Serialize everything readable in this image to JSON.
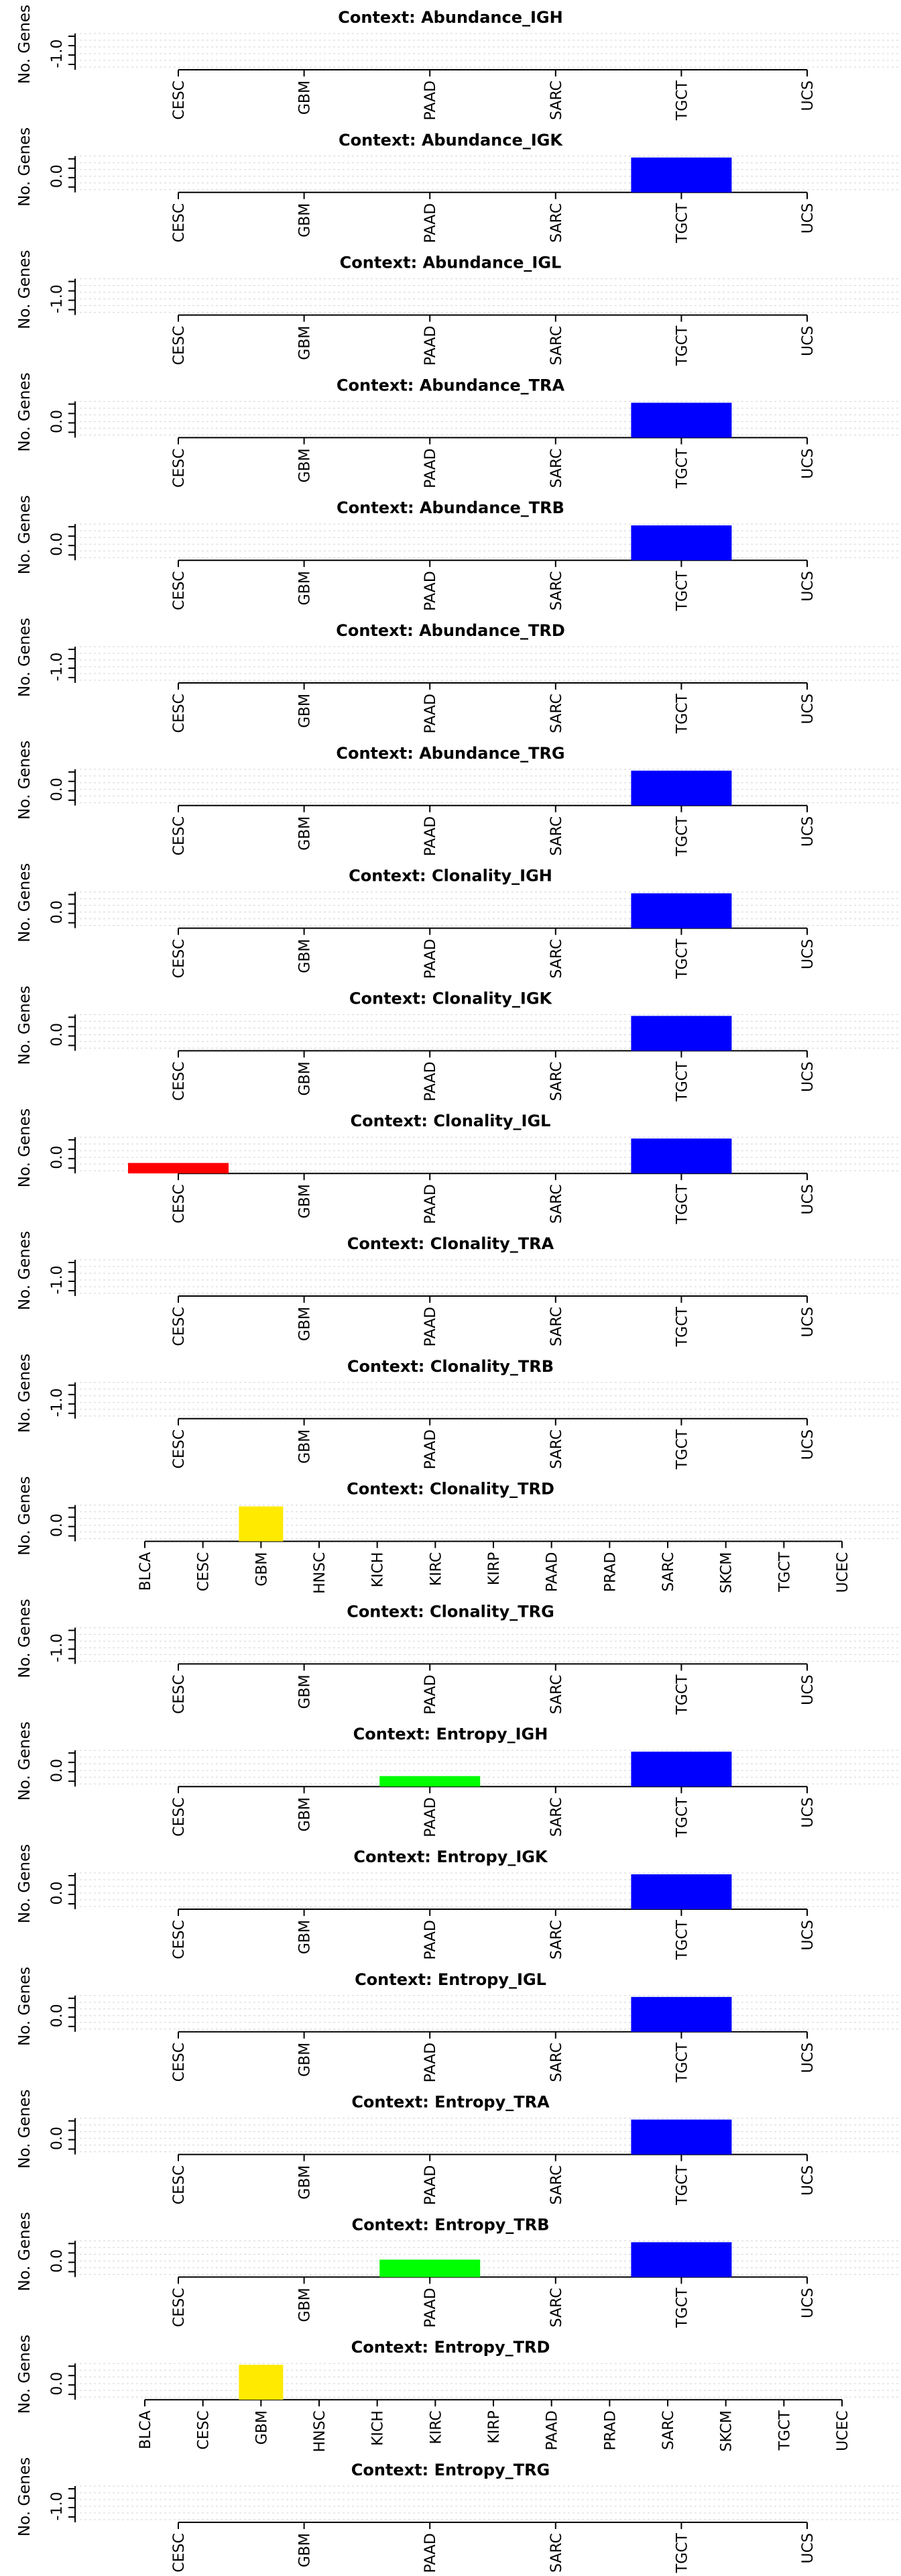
{
  "colors": {
    "TGCT": "#0000ff",
    "CESC": "#ff0000",
    "PAAD": "#00ff00",
    "GBM": "#ffea00"
  },
  "chart_data": [
    {
      "type": "bar",
      "title": "Context: Abundance_IGH",
      "ylabel": "No. Genes",
      "categories": [
        "CESC",
        "GBM",
        "PAAD",
        "SARC",
        "TGCT",
        "UCS"
      ],
      "values": [
        0,
        0,
        0,
        0,
        0,
        0
      ],
      "ytick": "-1.0",
      "bar_color_keys": [],
      "grid": true
    },
    {
      "type": "bar",
      "title": "Context: Abundance_IGK",
      "ylabel": "No. Genes",
      "categories": [
        "CESC",
        "GBM",
        "PAAD",
        "SARC",
        "TGCT",
        "UCS"
      ],
      "values": [
        0,
        0,
        0,
        0,
        1,
        0
      ],
      "ytick": "0.0",
      "bar_color_keys": [
        "",
        "",
        "",
        "",
        "TGCT",
        ""
      ],
      "grid": true
    },
    {
      "type": "bar",
      "title": "Context: Abundance_IGL",
      "ylabel": "No. Genes",
      "categories": [
        "CESC",
        "GBM",
        "PAAD",
        "SARC",
        "TGCT",
        "UCS"
      ],
      "values": [
        0,
        0,
        0,
        0,
        0,
        0
      ],
      "ytick": "-1.0",
      "bar_color_keys": [],
      "grid": true
    },
    {
      "type": "bar",
      "title": "Context: Abundance_TRA",
      "ylabel": "No. Genes",
      "categories": [
        "CESC",
        "GBM",
        "PAAD",
        "SARC",
        "TGCT",
        "UCS"
      ],
      "values": [
        0,
        0,
        0,
        0,
        1,
        0
      ],
      "ytick": "0.0",
      "bar_color_keys": [
        "",
        "",
        "",
        "",
        "TGCT",
        ""
      ],
      "grid": true
    },
    {
      "type": "bar",
      "title": "Context: Abundance_TRB",
      "ylabel": "No. Genes",
      "categories": [
        "CESC",
        "GBM",
        "PAAD",
        "SARC",
        "TGCT",
        "UCS"
      ],
      "values": [
        0,
        0,
        0,
        0,
        1,
        0
      ],
      "ytick": "0.0",
      "bar_color_keys": [
        "",
        "",
        "",
        "",
        "TGCT",
        ""
      ],
      "grid": true
    },
    {
      "type": "bar",
      "title": "Context: Abundance_TRD",
      "ylabel": "No. Genes",
      "categories": [
        "CESC",
        "GBM",
        "PAAD",
        "SARC",
        "TGCT",
        "UCS"
      ],
      "values": [
        0,
        0,
        0,
        0,
        0,
        0
      ],
      "ytick": "-1.0",
      "bar_color_keys": [],
      "grid": true
    },
    {
      "type": "bar",
      "title": "Context: Abundance_TRG",
      "ylabel": "No. Genes",
      "categories": [
        "CESC",
        "GBM",
        "PAAD",
        "SARC",
        "TGCT",
        "UCS"
      ],
      "values": [
        0,
        0,
        0,
        0,
        1,
        0
      ],
      "ytick": "0.0",
      "bar_color_keys": [
        "",
        "",
        "",
        "",
        "TGCT",
        ""
      ],
      "grid": true
    },
    {
      "type": "bar",
      "title": "Context: Clonality_IGH",
      "ylabel": "No. Genes",
      "categories": [
        "CESC",
        "GBM",
        "PAAD",
        "SARC",
        "TGCT",
        "UCS"
      ],
      "values": [
        0,
        0,
        0,
        0,
        1,
        0
      ],
      "ytick": "0.0",
      "bar_color_keys": [
        "",
        "",
        "",
        "",
        "TGCT",
        ""
      ],
      "grid": true
    },
    {
      "type": "bar",
      "title": "Context: Clonality_IGK",
      "ylabel": "No. Genes",
      "categories": [
        "CESC",
        "GBM",
        "PAAD",
        "SARC",
        "TGCT",
        "UCS"
      ],
      "values": [
        0,
        0,
        0,
        0,
        1,
        0
      ],
      "ytick": "0.0",
      "bar_color_keys": [
        "",
        "",
        "",
        "",
        "TGCT",
        ""
      ],
      "grid": true
    },
    {
      "type": "bar",
      "title": "Context: Clonality_IGL",
      "ylabel": "No. Genes",
      "categories": [
        "CESC",
        "GBM",
        "PAAD",
        "SARC",
        "TGCT",
        "UCS"
      ],
      "values": [
        0.3,
        0,
        0,
        0,
        1,
        0
      ],
      "ytick": "0.0",
      "bar_color_keys": [
        "CESC",
        "",
        "",
        "",
        "TGCT",
        ""
      ],
      "grid": true
    },
    {
      "type": "bar",
      "title": "Context: Clonality_TRA",
      "ylabel": "No. Genes",
      "categories": [
        "CESC",
        "GBM",
        "PAAD",
        "SARC",
        "TGCT",
        "UCS"
      ],
      "values": [
        0,
        0,
        0,
        0,
        0,
        0
      ],
      "ytick": "-1.0",
      "bar_color_keys": [],
      "grid": true
    },
    {
      "type": "bar",
      "title": "Context: Clonality_TRB",
      "ylabel": "No. Genes",
      "categories": [
        "CESC",
        "GBM",
        "PAAD",
        "SARC",
        "TGCT",
        "UCS"
      ],
      "values": [
        0,
        0,
        0,
        0,
        0,
        0
      ],
      "ytick": "-1.0",
      "bar_color_keys": [],
      "grid": true
    },
    {
      "type": "bar",
      "title": "Context: Clonality_TRD",
      "ylabel": "No. Genes",
      "categories": [
        "BLCA",
        "CESC",
        "GBM",
        "HNSC",
        "KICH",
        "KIRC",
        "KIRP",
        "PAAD",
        "PRAD",
        "SARC",
        "SKCM",
        "TGCT",
        "UCEC"
      ],
      "values": [
        0,
        0,
        1,
        0,
        0,
        0,
        0,
        0,
        0,
        0,
        0,
        0,
        0
      ],
      "ytick": "0.0",
      "bar_color_keys": [
        "",
        "",
        "GBM",
        "",
        "",
        "",
        "",
        "",
        "",
        "",
        "",
        "",
        ""
      ],
      "grid": true
    },
    {
      "type": "bar",
      "title": "Context: Clonality_TRG",
      "ylabel": "No. Genes",
      "categories": [
        "CESC",
        "GBM",
        "PAAD",
        "SARC",
        "TGCT",
        "UCS"
      ],
      "values": [
        0,
        0,
        0,
        0,
        0,
        0
      ],
      "ytick": "-1.0",
      "bar_color_keys": [],
      "grid": true
    },
    {
      "type": "bar",
      "title": "Context: Entropy_IGH",
      "ylabel": "No. Genes",
      "categories": [
        "CESC",
        "GBM",
        "PAAD",
        "SARC",
        "TGCT",
        "UCS"
      ],
      "values": [
        0,
        0,
        0.3,
        0,
        1,
        0
      ],
      "ytick": "0.0",
      "bar_color_keys": [
        "",
        "",
        "PAAD",
        "",
        "TGCT",
        ""
      ],
      "grid": true
    },
    {
      "type": "bar",
      "title": "Context: Entropy_IGK",
      "ylabel": "No. Genes",
      "categories": [
        "CESC",
        "GBM",
        "PAAD",
        "SARC",
        "TGCT",
        "UCS"
      ],
      "values": [
        0,
        0,
        0,
        0,
        1,
        0
      ],
      "ytick": "0.0",
      "bar_color_keys": [
        "",
        "",
        "",
        "",
        "TGCT",
        ""
      ],
      "grid": true
    },
    {
      "type": "bar",
      "title": "Context: Entropy_IGL",
      "ylabel": "No. Genes",
      "categories": [
        "CESC",
        "GBM",
        "PAAD",
        "SARC",
        "TGCT",
        "UCS"
      ],
      "values": [
        0,
        0,
        0,
        0,
        1,
        0
      ],
      "ytick": "0.0",
      "bar_color_keys": [
        "",
        "",
        "",
        "",
        "TGCT",
        ""
      ],
      "grid": true
    },
    {
      "type": "bar",
      "title": "Context: Entropy_TRA",
      "ylabel": "No. Genes",
      "categories": [
        "CESC",
        "GBM",
        "PAAD",
        "SARC",
        "TGCT",
        "UCS"
      ],
      "values": [
        0,
        0,
        0,
        0,
        1,
        0
      ],
      "ytick": "0.0",
      "bar_color_keys": [
        "",
        "",
        "",
        "",
        "TGCT",
        ""
      ],
      "grid": true
    },
    {
      "type": "bar",
      "title": "Context: Entropy_TRB",
      "ylabel": "No. Genes",
      "categories": [
        "CESC",
        "GBM",
        "PAAD",
        "SARC",
        "TGCT",
        "UCS"
      ],
      "values": [
        0,
        0,
        0.5,
        0,
        1,
        0
      ],
      "ytick": "0.0",
      "bar_color_keys": [
        "",
        "",
        "PAAD",
        "",
        "TGCT",
        ""
      ],
      "grid": true
    },
    {
      "type": "bar",
      "title": "Context: Entropy_TRD",
      "ylabel": "No. Genes",
      "categories": [
        "BLCA",
        "CESC",
        "GBM",
        "HNSC",
        "KICH",
        "KIRC",
        "KIRP",
        "PAAD",
        "PRAD",
        "SARC",
        "SKCM",
        "TGCT",
        "UCEC"
      ],
      "values": [
        0,
        0,
        1,
        0,
        0,
        0,
        0,
        0,
        0,
        0,
        0,
        0,
        0
      ],
      "ytick": "0.0",
      "bar_color_keys": [
        "",
        "",
        "GBM",
        "",
        "",
        "",
        "",
        "",
        "",
        "",
        "",
        "",
        ""
      ],
      "grid": true
    },
    {
      "type": "bar",
      "title": "Context: Entropy_TRG",
      "ylabel": "No. Genes",
      "categories": [
        "CESC",
        "GBM",
        "PAAD",
        "SARC",
        "TGCT",
        "UCS"
      ],
      "values": [
        0,
        0,
        0,
        0,
        0,
        0
      ],
      "ytick": "-1.0",
      "bar_color_keys": [],
      "grid": true
    }
  ]
}
